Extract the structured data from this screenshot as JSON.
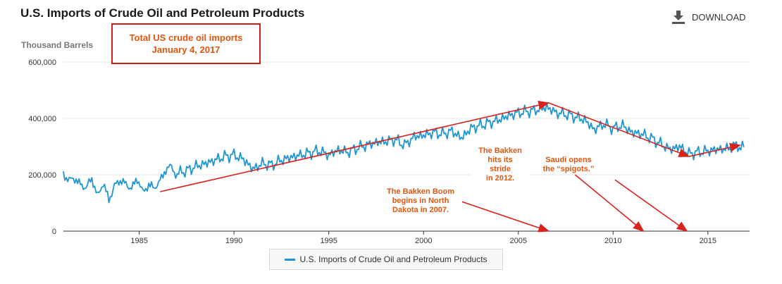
{
  "colors": {
    "series": "#1e96d2",
    "annotation_text": "#e0560f",
    "arrow": "#d9221c",
    "gridline": "#e6e6e6"
  },
  "header": {
    "title": "U.S. Imports of Crude Oil and Petroleum Products",
    "download_label": "DOWNLOAD",
    "download_icon": "download-icon"
  },
  "callout": {
    "line1": "Total US crude oil imports",
    "line2": "January 4, 2017"
  },
  "annotations": {
    "bakken_boom": [
      "The Bakken Boom",
      "begins in North",
      "Dakota in 2007."
    ],
    "bakken_stride": [
      "The Bakken",
      "hits its",
      "stride",
      "in 2012."
    ],
    "saudi": [
      "Saudi opens",
      "the “spigots.”"
    ]
  },
  "legend": {
    "label": "U.S. Imports of Crude Oil and Petroleum Products"
  },
  "chart_data": {
    "type": "line",
    "title": "U.S. Imports of Crude Oil and Petroleum Products",
    "ylabel": "Thousand Barrels",
    "xlabel": "",
    "xlim": [
      1981,
      2017.2
    ],
    "ylim": [
      0,
      600000
    ],
    "x_ticks": [
      1985,
      1990,
      1995,
      2000,
      2005,
      2010,
      2015
    ],
    "y_ticks": [
      0,
      200000,
      400000,
      600000
    ],
    "y_tick_labels": [
      "0",
      "200,000",
      "400,000",
      "600,000"
    ],
    "grid": true,
    "legend_position": "bottom-center",
    "series": [
      {
        "name": "U.S. Imports of Crude Oil and Petroleum Products",
        "x": [
          1981.0,
          1981.3,
          1981.6,
          1981.9,
          1982.2,
          1982.5,
          1982.8,
          1983.1,
          1983.4,
          1983.7,
          1984.0,
          1984.3,
          1984.6,
          1984.9,
          1985.2,
          1985.5,
          1985.8,
          1986.1,
          1986.4,
          1986.7,
          1987.0,
          1987.5,
          1988.0,
          1988.5,
          1989.0,
          1989.5,
          1990.0,
          1990.5,
          1991.0,
          1991.5,
          1992.0,
          1992.5,
          1993.0,
          1993.5,
          1994.0,
          1994.5,
          1995.0,
          1995.5,
          1996.0,
          1996.5,
          1997.0,
          1997.5,
          1998.0,
          1998.5,
          1999.0,
          1999.5,
          2000.0,
          2000.5,
          2001.0,
          2001.5,
          2002.0,
          2002.5,
          2003.0,
          2003.5,
          2004.0,
          2004.5,
          2005.0,
          2005.5,
          2006.0,
          2006.5,
          2007.0,
          2007.5,
          2008.0,
          2008.5,
          2009.0,
          2009.5,
          2010.0,
          2010.5,
          2011.0,
          2011.5,
          2012.0,
          2012.5,
          2013.0,
          2013.5,
          2014.0,
          2014.5,
          2015.0,
          2015.5,
          2016.0,
          2016.5,
          2016.9
        ],
        "values": [
          210000,
          185000,
          172000,
          180000,
          150000,
          178000,
          140000,
          160000,
          108000,
          175000,
          165000,
          172000,
          160000,
          170000,
          150000,
          165000,
          140000,
          195000,
          210000,
          225000,
          205000,
          215000,
          230000,
          240000,
          252000,
          265000,
          270000,
          255000,
          220000,
          240000,
          235000,
          252000,
          262000,
          270000,
          278000,
          285000,
          270000,
          288000,
          280000,
          295000,
          305000,
          315000,
          318000,
          325000,
          305000,
          335000,
          340000,
          350000,
          345000,
          355000,
          330000,
          365000,
          375000,
          385000,
          395000,
          410000,
          420000,
          425000,
          430000,
          440000,
          420000,
          415000,
          405000,
          395000,
          360000,
          380000,
          365000,
          375000,
          350000,
          345000,
          330000,
          310000,
          290000,
          300000,
          275000,
          280000,
          285000,
          290000,
          292000,
          305000,
          298000
        ]
      }
    ],
    "trend_arrows": [
      {
        "from": [
          1986.1,
          140000
        ],
        "to": [
          2006.6,
          455000
        ]
      },
      {
        "from": [
          2006.6,
          455000
        ],
        "to": [
          2014.0,
          265000
        ]
      },
      {
        "from": [
          2014.0,
          265000
        ],
        "to": [
          2016.7,
          305000
        ]
      },
      {
        "from": [
          2002.0,
          105000
        ],
        "to": [
          2006.6,
          0
        ]
      },
      {
        "from": [
          2008.0,
          200000
        ],
        "to": [
          2011.6,
          0
        ]
      },
      {
        "from": [
          2010.1,
          182000
        ],
        "to": [
          2013.9,
          0
        ]
      }
    ]
  }
}
